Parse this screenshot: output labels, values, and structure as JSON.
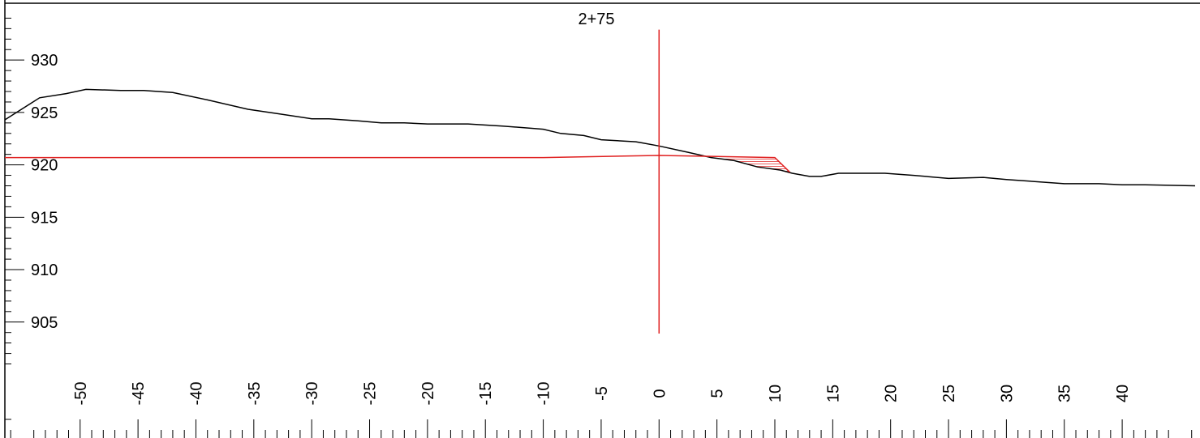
{
  "chart_data": {
    "type": "line",
    "station_label": "2+75",
    "x_ticks": [
      -50,
      -45,
      -40,
      -35,
      -30,
      -25,
      -20,
      -15,
      -10,
      -5,
      0,
      5,
      10,
      15,
      20,
      25,
      30,
      35,
      40
    ],
    "y_ticks": [
      905,
      910,
      915,
      920,
      925,
      930
    ],
    "xlim": [
      -56.5,
      46.3
    ],
    "ylim": [
      900.5,
      935.5
    ],
    "grid": false,
    "series": [
      {
        "color": "#000000",
        "points": [
          [
            -56.5,
            924.3
          ],
          [
            -53.5,
            926.4
          ],
          [
            -51.2,
            926.8
          ],
          [
            -49.5,
            927.2
          ],
          [
            -46.5,
            927.1
          ],
          [
            -44.5,
            927.1
          ],
          [
            -42.0,
            926.9
          ],
          [
            -39.0,
            926.2
          ],
          [
            -35.5,
            925.3
          ],
          [
            -33.0,
            924.9
          ],
          [
            -30.0,
            924.4
          ],
          [
            -28.5,
            924.4
          ],
          [
            -26.0,
            924.2
          ],
          [
            -24.0,
            924.0
          ],
          [
            -22.0,
            924.0
          ],
          [
            -20.0,
            923.9
          ],
          [
            -16.5,
            923.9
          ],
          [
            -13.5,
            923.7
          ],
          [
            -10.0,
            923.4
          ],
          [
            -8.5,
            923.0
          ],
          [
            -6.5,
            922.8
          ],
          [
            -5.0,
            922.4
          ],
          [
            -2.0,
            922.2
          ],
          [
            -1.5,
            922.1
          ],
          [
            0.0,
            921.8
          ],
          [
            2.5,
            921.2
          ],
          [
            4.5,
            920.7
          ],
          [
            6.5,
            920.4
          ],
          [
            8.5,
            919.8
          ],
          [
            10.5,
            919.5
          ],
          [
            11.5,
            919.2
          ],
          [
            13.0,
            918.9
          ],
          [
            14.0,
            918.9
          ],
          [
            15.5,
            919.2
          ],
          [
            16.0,
            919.2
          ],
          [
            18.0,
            919.2
          ],
          [
            19.5,
            919.2
          ],
          [
            22.0,
            919.0
          ],
          [
            25.0,
            918.7
          ],
          [
            28.0,
            918.8
          ],
          [
            30.0,
            918.6
          ],
          [
            35.0,
            918.2
          ],
          [
            38.0,
            918.2
          ],
          [
            40.0,
            918.1
          ],
          [
            42.0,
            918.1
          ],
          [
            46.3,
            918.0
          ]
        ]
      },
      {
        "color": "#e02020",
        "points": [
          [
            -56.5,
            920.7
          ],
          [
            -10.0,
            920.7
          ],
          [
            0.0,
            920.9
          ],
          [
            5.0,
            920.8
          ],
          [
            10.0,
            920.7
          ],
          [
            11.3,
            919.3
          ]
        ]
      }
    ],
    "fill_region": {
      "color": "#e02020",
      "points": [
        [
          4.5,
          920.8
        ],
        [
          10.0,
          920.7
        ],
        [
          11.3,
          919.3
        ],
        [
          10.5,
          919.5
        ],
        [
          8.5,
          919.8
        ],
        [
          6.5,
          920.4
        ]
      ]
    },
    "centerline": {
      "x": 0,
      "color": "#e02020",
      "y_from": 903.9,
      "y_to": 932.9
    }
  }
}
